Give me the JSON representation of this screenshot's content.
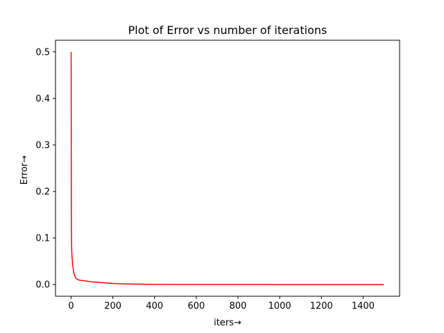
{
  "chart_data": {
    "type": "line",
    "title": "Plot of Error vs number of iterations",
    "xlabel": "iters→",
    "ylabel": "Error→",
    "xlim": [
      -75,
      1575
    ],
    "ylim": [
      -0.025,
      0.525
    ],
    "x_ticks": [
      0,
      200,
      400,
      600,
      800,
      1000,
      1200,
      1400
    ],
    "x_tick_labels": [
      "0",
      "200",
      "400",
      "600",
      "800",
      "1000",
      "1200",
      "1400"
    ],
    "y_ticks": [
      0.0,
      0.1,
      0.2,
      0.3,
      0.4,
      0.5
    ],
    "y_tick_labels": [
      "0.0",
      "0.1",
      "0.2",
      "0.3",
      "0.4",
      "0.5"
    ],
    "grid": false,
    "series": [
      {
        "color": "#ff0000",
        "x": [
          0,
          1,
          2,
          3,
          5,
          8,
          12,
          16,
          20,
          25,
          30,
          40,
          50,
          75,
          100,
          150,
          200,
          250,
          300,
          400,
          500,
          600,
          800,
          1000,
          1200,
          1400,
          1499
        ],
        "y": [
          0.5,
          0.125,
          0.09,
          0.07,
          0.055,
          0.04,
          0.028,
          0.02,
          0.016,
          0.013,
          0.011,
          0.0095,
          0.009,
          0.0075,
          0.006,
          0.004,
          0.0025,
          0.0015,
          0.001,
          0.0005,
          0.0003,
          0.0002,
          0.0001,
          5e-05,
          3e-05,
          2e-05,
          1e-05
        ]
      }
    ]
  }
}
